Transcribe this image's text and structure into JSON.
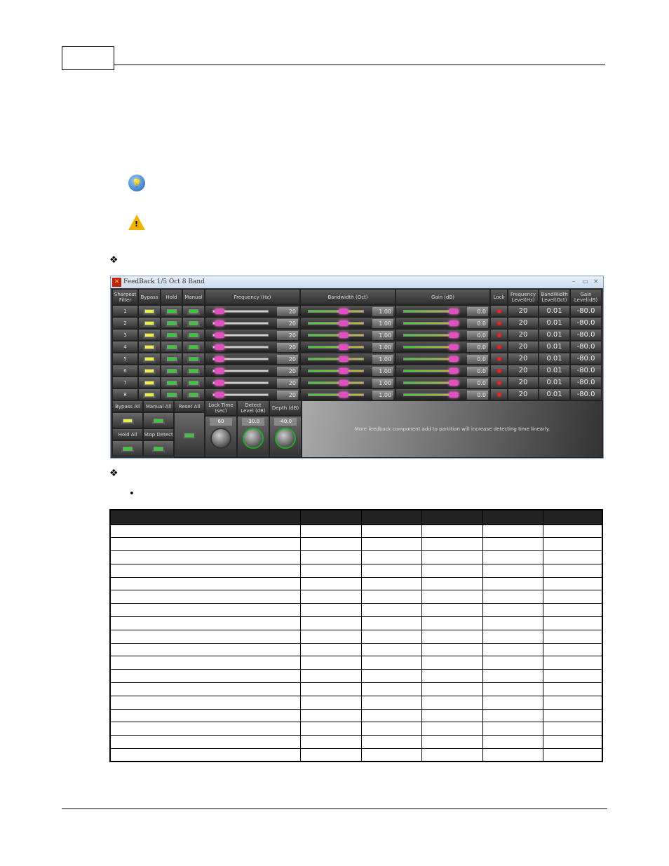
{
  "window": {
    "title": "FeedBack 1/5 Oct 8 Band",
    "minimize": "–",
    "maximize": "▭",
    "close": "×"
  },
  "headers": {
    "sharpest": "Sharpest Filter",
    "bypass": "Bypass",
    "hold": "Hold",
    "manual": "Manual",
    "frequency": "Frequency (Hz)",
    "bandwidth": "Bandwidth (Oct)",
    "gain": "Gain (dB)",
    "lock": "Lock",
    "freq_level": "Frequency Level(Hz)",
    "bw_level": "BandWidth Level(Oct)",
    "gain_level": "Gain Level(dB)"
  },
  "rows": [
    {
      "n": "1",
      "freq": "20",
      "bw": "1.00",
      "gain": "0.0",
      "fl": "20",
      "bl": "0.01",
      "gl": "-80.0"
    },
    {
      "n": "2",
      "freq": "20",
      "bw": "1.00",
      "gain": "0.0",
      "fl": "20",
      "bl": "0.01",
      "gl": "-80.0"
    },
    {
      "n": "3",
      "freq": "20",
      "bw": "1.00",
      "gain": "0.0",
      "fl": "20",
      "bl": "0.01",
      "gl": "-80.0"
    },
    {
      "n": "4",
      "freq": "20",
      "bw": "1.00",
      "gain": "0.0",
      "fl": "20",
      "bl": "0.01",
      "gl": "-80.0"
    },
    {
      "n": "5",
      "freq": "20",
      "bw": "1.00",
      "gain": "0.0",
      "fl": "20",
      "bl": "0.01",
      "gl": "-80.0"
    },
    {
      "n": "6",
      "freq": "20",
      "bw": "1.00",
      "gain": "0.0",
      "fl": "20",
      "bl": "0.01",
      "gl": "-80.0"
    },
    {
      "n": "7",
      "freq": "20",
      "bw": "1.00",
      "gain": "0.0",
      "fl": "20",
      "bl": "0.01",
      "gl": "-80.0"
    },
    {
      "n": "8",
      "freq": "20",
      "bw": "1.00",
      "gain": "0.0",
      "fl": "20",
      "bl": "0.01",
      "gl": "-80.0"
    }
  ],
  "bottom": {
    "bypass_all": "Bypass All",
    "manual_all": "Manual All",
    "reset_all": "Reset All",
    "hold_all": "Hold All",
    "stop_detect": "Stop Detect",
    "lock_time": "Lock Time (sec)",
    "lock_time_val": "60",
    "detect_level": "Detect Level (dB)",
    "detect_level_val": "-30.0",
    "depth": "Depth (dB)",
    "depth_val": "-40.0",
    "note": "More feedback component add to partition will increase detecting time linearly."
  },
  "bullets": {
    "diamond": "❖",
    "dot": "•"
  },
  "table": {
    "columns": 6,
    "rows": 18
  }
}
